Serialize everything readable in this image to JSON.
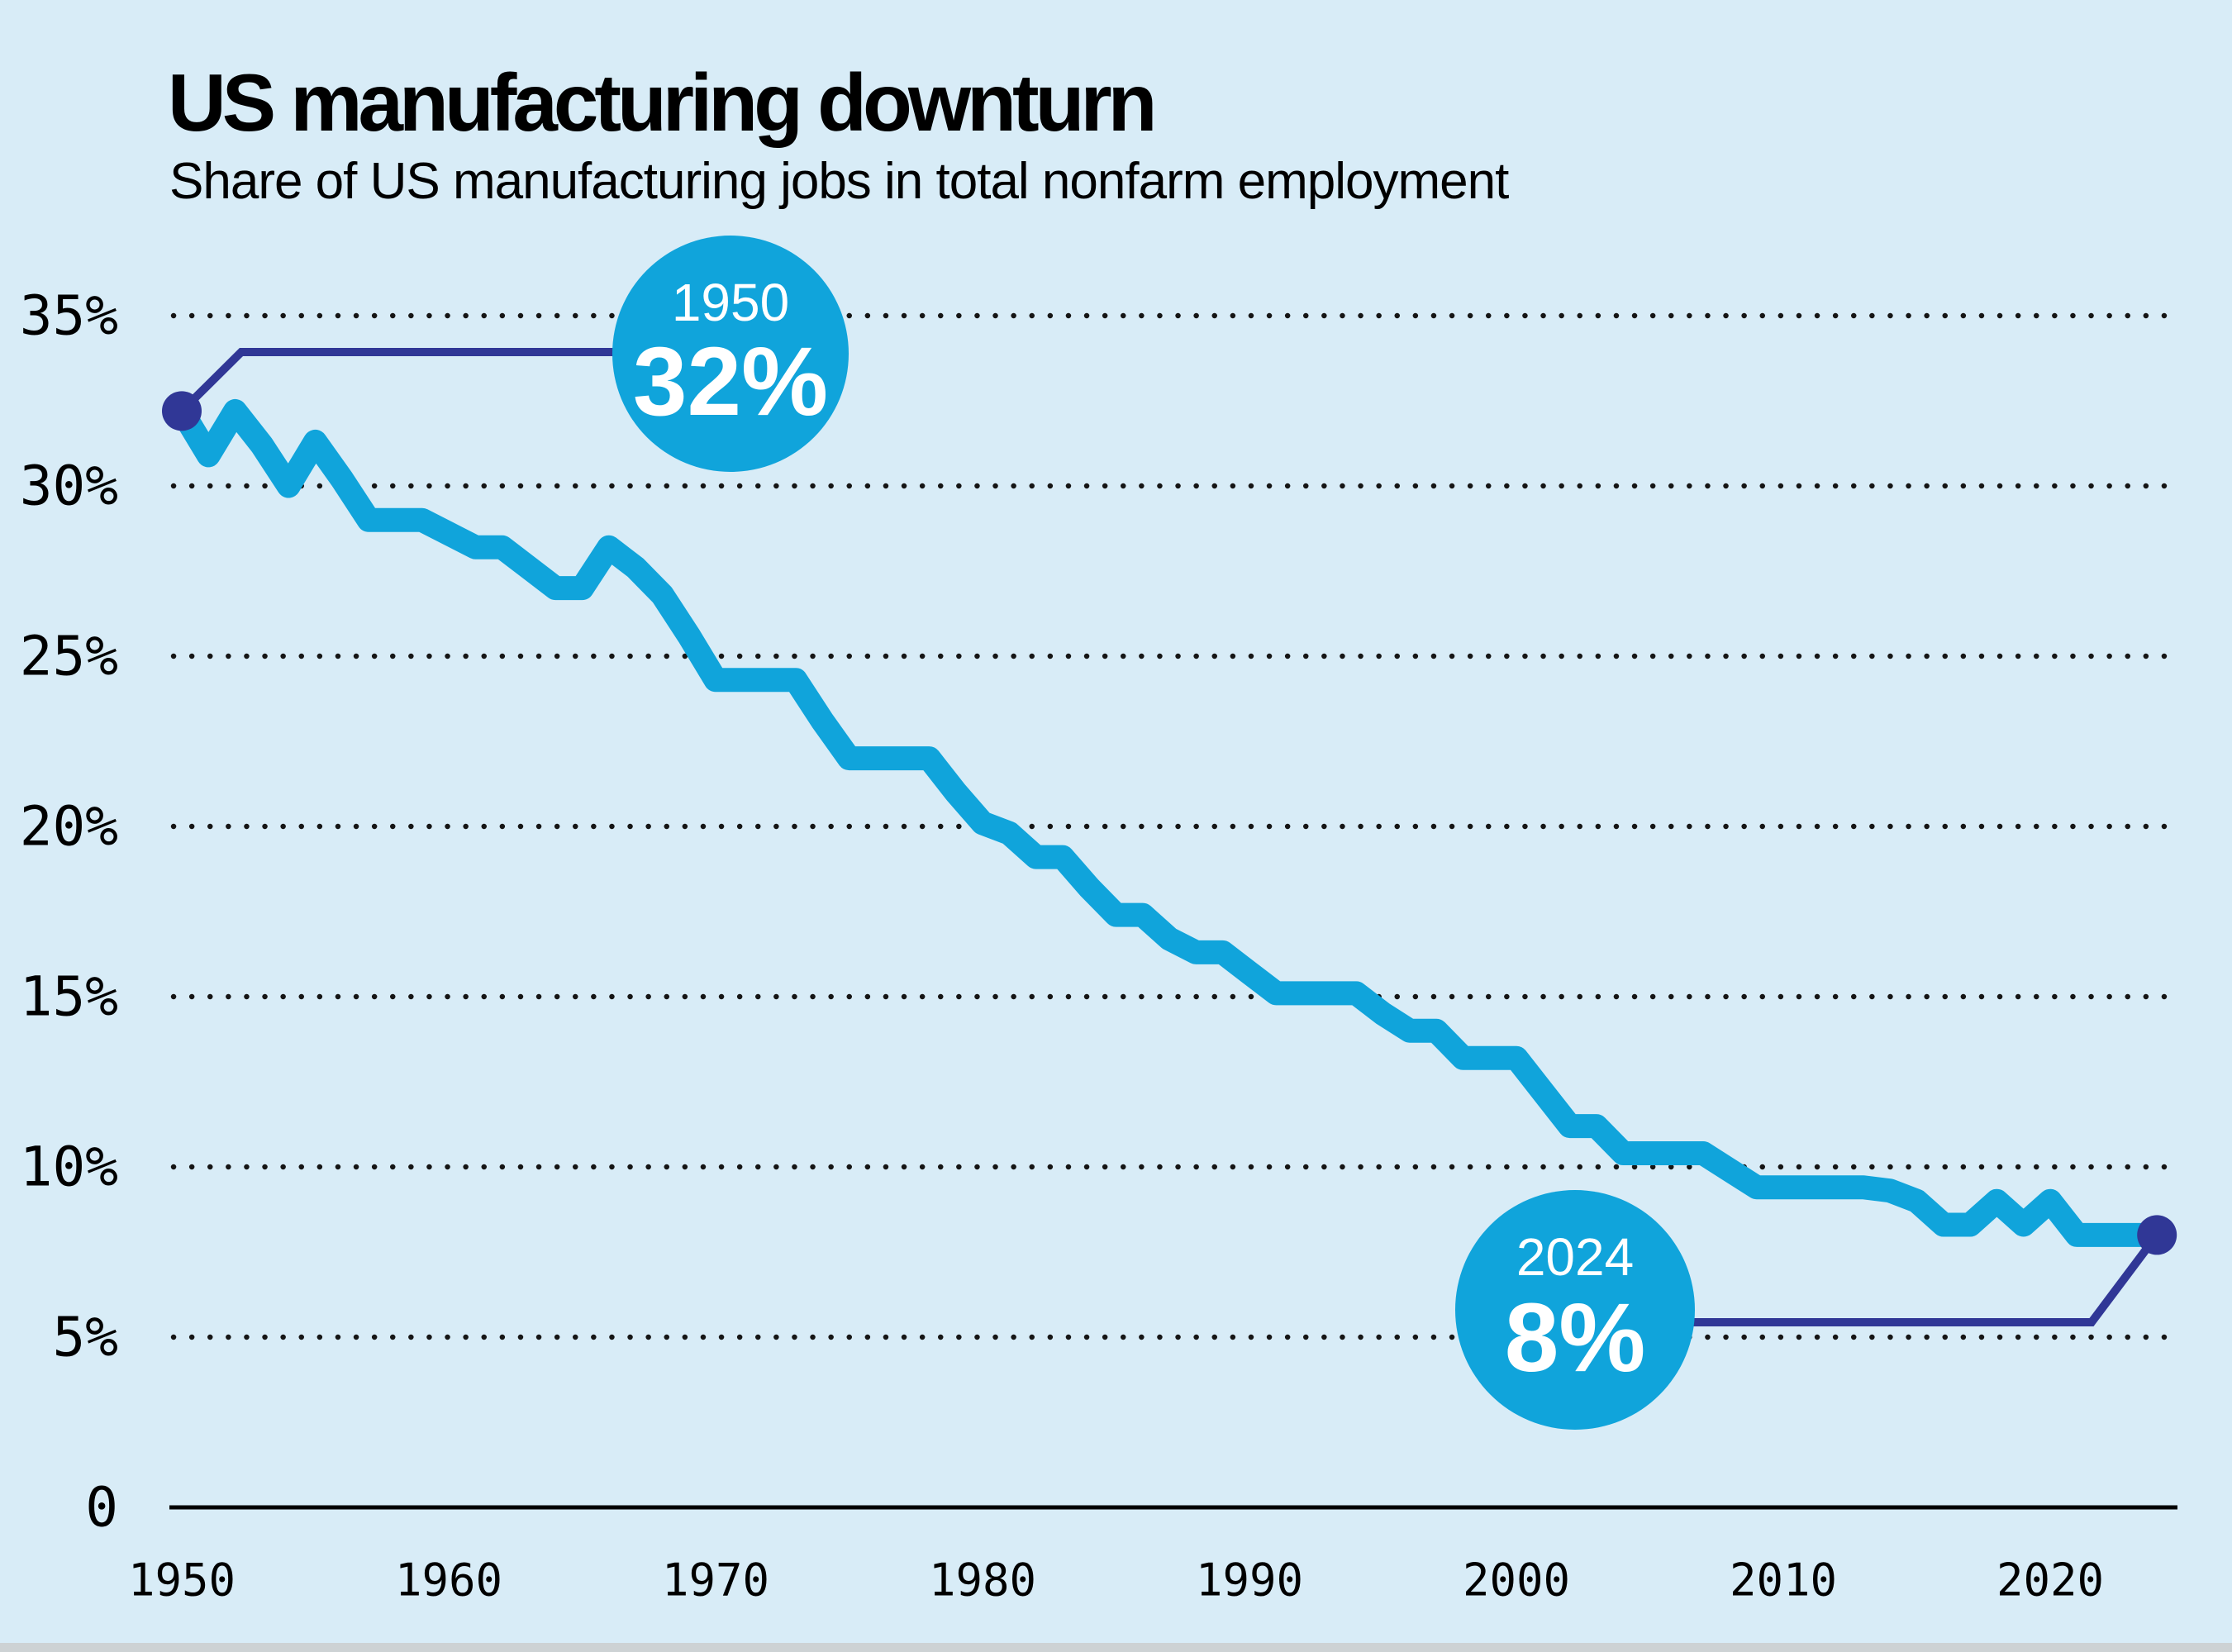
{
  "header": {
    "title": "US manufacturing downturn",
    "subtitle": "Share of US manufacturing jobs in total nonfarm employment"
  },
  "colors": {
    "background": "#d8ecf7",
    "line": "#10a4db",
    "callout_circle": "#10a4db",
    "callout_text": "#ffffff",
    "navy": "#303796",
    "text": "#000000",
    "grid_dots": "#151515",
    "axis": "#000000",
    "footer_strip": "#cdd2d4"
  },
  "chart_data": {
    "type": "line",
    "title": "US manufacturing downturn",
    "subtitle": "Share of US manufacturing jobs in total nonfarm employment",
    "xlabel": "",
    "ylabel": "",
    "ylim": [
      0,
      35
    ],
    "xlim": [
      1950,
      2024
    ],
    "grid": "dotted-horizontal",
    "x": [
      1950,
      1951,
      1952,
      1953,
      1954,
      1955,
      1956,
      1957,
      1958,
      1959,
      1960,
      1961,
      1962,
      1963,
      1964,
      1965,
      1966,
      1967,
      1968,
      1969,
      1970,
      1971,
      1972,
      1973,
      1974,
      1975,
      1976,
      1977,
      1978,
      1979,
      1980,
      1981,
      1982,
      1983,
      1984,
      1985,
      1986,
      1987,
      1988,
      1989,
      1990,
      1991,
      1992,
      1993,
      1994,
      1995,
      1996,
      1997,
      1998,
      1999,
      2000,
      2001,
      2002,
      2003,
      2004,
      2005,
      2006,
      2007,
      2008,
      2009,
      2010,
      2011,
      2012,
      2013,
      2014,
      2015,
      2016,
      2017,
      2018,
      2019,
      2020,
      2021,
      2022,
      2023,
      2024
    ],
    "values": [
      32.2,
      30.9,
      32.2,
      31.2,
      30.0,
      31.3,
      30.2,
      29.0,
      29.0,
      29.0,
      28.6,
      28.2,
      28.2,
      27.6,
      27.0,
      27.0,
      28.2,
      27.6,
      26.8,
      25.6,
      24.3,
      24.3,
      24.3,
      24.3,
      23.1,
      22.0,
      22.0,
      22.0,
      22.0,
      21.0,
      20.1,
      19.8,
      19.1,
      19.1,
      18.2,
      17.4,
      17.4,
      16.7,
      16.3,
      16.3,
      15.7,
      15.1,
      15.1,
      15.1,
      15.1,
      14.5,
      14.0,
      14.0,
      13.2,
      13.2,
      13.2,
      12.2,
      11.2,
      11.2,
      10.4,
      10.4,
      10.4,
      10.4,
      9.9,
      9.4,
      9.4,
      9.4,
      9.4,
      9.4,
      9.3,
      9.0,
      8.3,
      8.3,
      9.0,
      8.3,
      9.0,
      8.0,
      8.0,
      8.0,
      8.0
    ],
    "y_ticks": [
      {
        "label": "35%",
        "value": 35
      },
      {
        "label": "30%",
        "value": 30
      },
      {
        "label": "25%",
        "value": 25
      },
      {
        "label": "20%",
        "value": 20
      },
      {
        "label": "15%",
        "value": 15
      },
      {
        "label": "10%",
        "value": 10
      },
      {
        "label": "5%",
        "value": 5
      },
      {
        "label": "0",
        "value": 0
      }
    ],
    "x_ticks": [
      {
        "label": "1950",
        "year": 1950
      },
      {
        "label": "1960",
        "year": 1960
      },
      {
        "label": "1970",
        "year": 1970
      },
      {
        "label": "1980",
        "year": 1980
      },
      {
        "label": "1990",
        "year": 1990
      },
      {
        "label": "2000",
        "year": 2000
      },
      {
        "label": "2010",
        "year": 2010
      },
      {
        "label": "2020",
        "year": 2020
      }
    ],
    "callouts": [
      {
        "year_label": "1950",
        "value_label": "32%",
        "year": 1950,
        "value": 32
      },
      {
        "year_label": "2024",
        "value_label": "8%",
        "year": 2024,
        "value": 8
      }
    ]
  }
}
